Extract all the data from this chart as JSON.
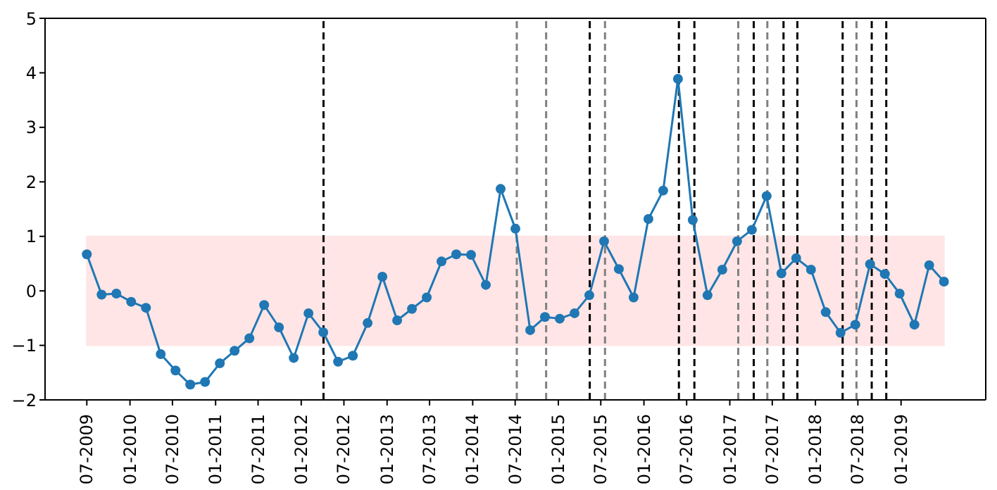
{
  "chart_data": {
    "type": "line",
    "x": [
      "2009-07-01",
      "2009-09-02",
      "2009-11-04",
      "2010-01-06",
      "2010-03-10",
      "2010-05-12",
      "2010-07-14",
      "2010-09-15",
      "2010-11-17",
      "2011-01-19",
      "2011-03-23",
      "2011-05-25",
      "2011-07-27",
      "2011-09-28",
      "2011-11-30",
      "2012-02-01",
      "2012-04-04",
      "2012-06-06",
      "2012-08-08",
      "2012-10-10",
      "2012-12-12",
      "2013-02-13",
      "2013-04-17",
      "2013-06-19",
      "2013-08-21",
      "2013-10-23",
      "2013-12-25",
      "2014-02-26",
      "2014-04-30",
      "2014-07-02",
      "2014-09-03",
      "2014-11-05",
      "2015-01-07",
      "2015-03-11",
      "2015-05-13",
      "2015-07-15",
      "2015-09-16",
      "2015-11-18",
      "2016-01-20",
      "2016-03-23",
      "2016-05-25",
      "2016-07-27",
      "2016-09-28",
      "2016-11-30",
      "2017-02-01",
      "2017-04-05",
      "2017-06-07",
      "2017-08-09",
      "2017-10-11",
      "2017-12-13",
      "2018-02-14",
      "2018-04-18",
      "2018-06-20",
      "2018-08-22",
      "2018-10-24",
      "2018-12-26",
      "2019-02-27",
      "2019-05-01",
      "2019-07-03"
    ],
    "series": [
      {
        "color": "#1f77b4",
        "values": [
          0.67,
          -0.07,
          -0.05,
          -0.2,
          -0.31,
          -1.16,
          -1.46,
          -1.72,
          -1.67,
          -1.33,
          -1.1,
          -0.87,
          -0.26,
          -0.67,
          -1.23,
          -0.41,
          -0.76,
          -1.3,
          -1.19,
          -0.59,
          0.26,
          -0.54,
          -0.33,
          -0.12,
          0.54,
          0.67,
          0.66,
          0.11,
          1.87,
          1.14,
          -0.72,
          -0.48,
          -0.51,
          -0.41,
          -0.08,
          0.91,
          0.4,
          -0.12,
          1.32,
          1.84,
          3.89,
          1.3,
          -0.08,
          0.39,
          0.91,
          1.12,
          1.74,
          0.32,
          0.6,
          0.39,
          -0.39,
          -0.77,
          -0.62,
          0.49,
          0.31,
          -0.05,
          -0.62,
          0.47,
          0.17
        ]
      }
    ],
    "xlim": [
      "2009-01-04",
      "2019-12-28"
    ],
    "xticks": [
      {
        "value": "2009-07",
        "label": "07-2009"
      },
      {
        "value": "2010-01",
        "label": "01-2010"
      },
      {
        "value": "2010-07",
        "label": "07-2010"
      },
      {
        "value": "2011-01",
        "label": "01-2011"
      },
      {
        "value": "2011-07",
        "label": "07-2011"
      },
      {
        "value": "2012-01",
        "label": "01-2012"
      },
      {
        "value": "2012-07",
        "label": "07-2012"
      },
      {
        "value": "2013-01",
        "label": "01-2013"
      },
      {
        "value": "2013-07",
        "label": "07-2013"
      },
      {
        "value": "2014-01",
        "label": "01-2014"
      },
      {
        "value": "2014-07",
        "label": "07-2014"
      },
      {
        "value": "2015-01",
        "label": "01-2015"
      },
      {
        "value": "2015-07",
        "label": "07-2015"
      },
      {
        "value": "2016-01",
        "label": "01-2016"
      },
      {
        "value": "2016-07",
        "label": "07-2016"
      },
      {
        "value": "2017-01",
        "label": "01-2017"
      },
      {
        "value": "2017-07",
        "label": "07-2017"
      },
      {
        "value": "2018-01",
        "label": "01-2018"
      },
      {
        "value": "2018-07",
        "label": "07-2018"
      },
      {
        "value": "2019-01",
        "label": "01-2019"
      }
    ],
    "ylim": [
      -2,
      5
    ],
    "yticks": [
      -2,
      -1,
      0,
      1,
      2,
      3,
      4,
      5
    ],
    "marker": "circle",
    "line_style": "solid",
    "bands": [
      {
        "axis": "y",
        "from": -1,
        "to": 1,
        "color": "#ffe5e5"
      }
    ],
    "ref_lines": [
      {
        "axis": "x",
        "value": "2012-04-05",
        "color": "#000000",
        "line_style": "dashed"
      },
      {
        "axis": "x",
        "value": "2014-07-08",
        "color": "#808080",
        "line_style": "dashed"
      },
      {
        "axis": "x",
        "value": "2014-11-10",
        "color": "#808080",
        "line_style": "dashed"
      },
      {
        "axis": "x",
        "value": "2015-05-15",
        "color": "#000000",
        "line_style": "dashed"
      },
      {
        "axis": "x",
        "value": "2015-07-19",
        "color": "#808080",
        "line_style": "dashed"
      },
      {
        "axis": "x",
        "value": "2016-05-29",
        "color": "#000000",
        "line_style": "dashed"
      },
      {
        "axis": "x",
        "value": "2016-08-03",
        "color": "#000000",
        "line_style": "dashed"
      },
      {
        "axis": "x",
        "value": "2017-02-06",
        "color": "#808080",
        "line_style": "dashed"
      },
      {
        "axis": "x",
        "value": "2017-04-13",
        "color": "#000000",
        "line_style": "dashed"
      },
      {
        "axis": "x",
        "value": "2017-06-10",
        "color": "#808080",
        "line_style": "dashed"
      },
      {
        "axis": "x",
        "value": "2017-08-18",
        "color": "#000000",
        "line_style": "dashed"
      },
      {
        "axis": "x",
        "value": "2017-10-16",
        "color": "#000000",
        "line_style": "dashed"
      },
      {
        "axis": "x",
        "value": "2018-04-27",
        "color": "#000000",
        "line_style": "dashed"
      },
      {
        "axis": "x",
        "value": "2018-06-25",
        "color": "#808080",
        "line_style": "dashed"
      },
      {
        "axis": "x",
        "value": "2018-08-29",
        "color": "#000000",
        "line_style": "dashed"
      },
      {
        "axis": "x",
        "value": "2018-10-30",
        "color": "#000000",
        "line_style": "dashed"
      }
    ]
  }
}
